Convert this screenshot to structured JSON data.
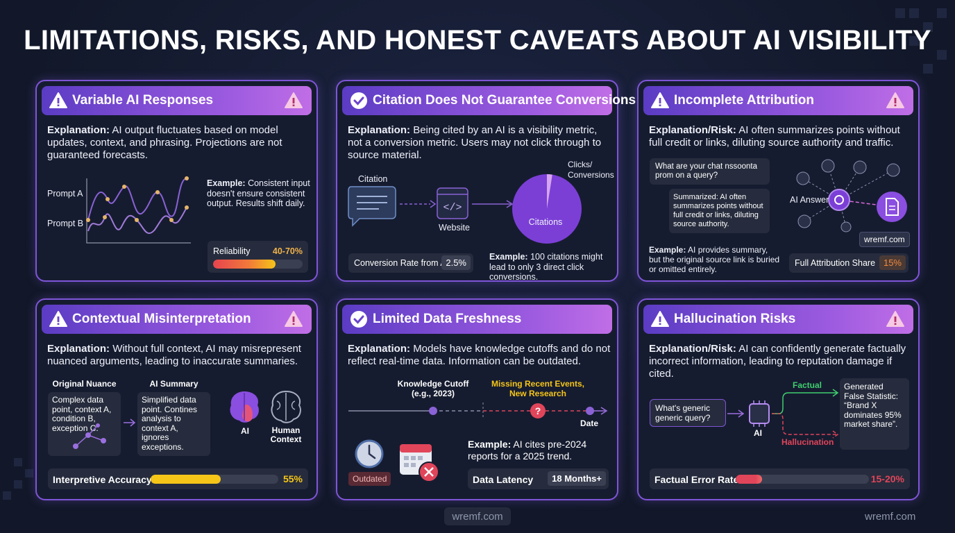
{
  "title": "LIMITATIONS, RISKS, AND HONEST CAVEATS ABOUT AI VISIBILITY",
  "cards": [
    {
      "heading": "Variable AI Responses",
      "explanation_label": "Explanation:",
      "explanation": "AI output fluctuates based on model updates, context, and phrasing. Projections are not guaranteed forecasts.",
      "series_labels": [
        "Prompt A",
        "Prompt B"
      ],
      "example_label": "Example:",
      "example": "Consistent input doesn't ensure consistent output. Results shift daily.",
      "meter": {
        "label": "Reliability",
        "values": [
          40,
          70
        ],
        "value_label": "40-70%"
      }
    },
    {
      "heading": "Citation Does Not Guarantee Conversions",
      "explanation_label": "Explanation:",
      "explanation": "Being cited by an AI is a visibility metric, not a conversion metric. Users may not click through to source material.",
      "labels": [
        "Citation",
        "Website",
        "Citations",
        "Clicks/\nConversions"
      ],
      "stat": {
        "label": "Conversion Rate from AI",
        "value": 2.5,
        "value_label": "2.5%"
      },
      "example_label": "Example:",
      "example": "100 citations might lead to only 3 direct click conversions."
    },
    {
      "heading": "Incomplete Attribution",
      "explanation_label": "Explanation/Risk:",
      "explanation": "AI often summarizes points without full credit or links, diluting source authority and traffic.",
      "bubbles": [
        "What are your chat nssoonta prom on a query?",
        "Summarized: AI often summarizes points without full credit or links, diluting source authority."
      ],
      "example_label": "Example:",
      "example": "AI provides summary, but the original source link is buried or omitted entirely.",
      "labels": [
        "AI Answer",
        "wremf.com"
      ],
      "stat": {
        "label": "Full Attribution Share",
        "value_label": "15%"
      }
    },
    {
      "heading": "Contextual Misinterpretation",
      "explanation_label": "Explanation:",
      "explanation": "Without full context, AI may misrepresent nuanced arguments, leading to inaccurate summaries.",
      "boxes": [
        {
          "title": "Original Nuance",
          "text": "Complex data point, context A, condition B, exception C."
        },
        {
          "title": "AI Summary",
          "text": "Simplified data point. Contines analysis to context A, ignores exceptions."
        }
      ],
      "labels": [
        "AI",
        "Human\nContext"
      ],
      "meter": {
        "label": "Interpretive Accuracy",
        "values": [
          55
        ],
        "value_label": "55%"
      }
    },
    {
      "heading": "Limited Data Freshness",
      "explanation_label": "Explanation:",
      "explanation": "Models have knowledge cutoffs and do not reflect real-time data. Information can be outdated.",
      "timeline": [
        "Knowledge Cutoff\n(e.g., 2023)",
        "Missing Recent Events,\nNew Research",
        "Date"
      ],
      "badge": "Outdated",
      "example_label": "Example:",
      "example": "AI cites pre-2024 reports for a 2025 trend.",
      "stat": {
        "label": "Data Latency",
        "value_label": "18 Months+"
      }
    },
    {
      "heading": "Hallucination Risks",
      "explanation_label": "Explanation/Risk:",
      "explanation": "AI can confidently generate factually incorrect information, leading to reputation damage if cited.",
      "query": "What's generic generic query?",
      "labels": [
        "AI",
        "Factual",
        "Hallucination"
      ],
      "output": "Generated False Statistic: “Brand X dominates 95% market share”.",
      "meter": {
        "label": "Factual Error Rate",
        "values": [
          15,
          20
        ],
        "value_label": "15-20%"
      }
    }
  ],
  "watermarks": [
    "wremf.com",
    "wremf.com"
  ]
}
